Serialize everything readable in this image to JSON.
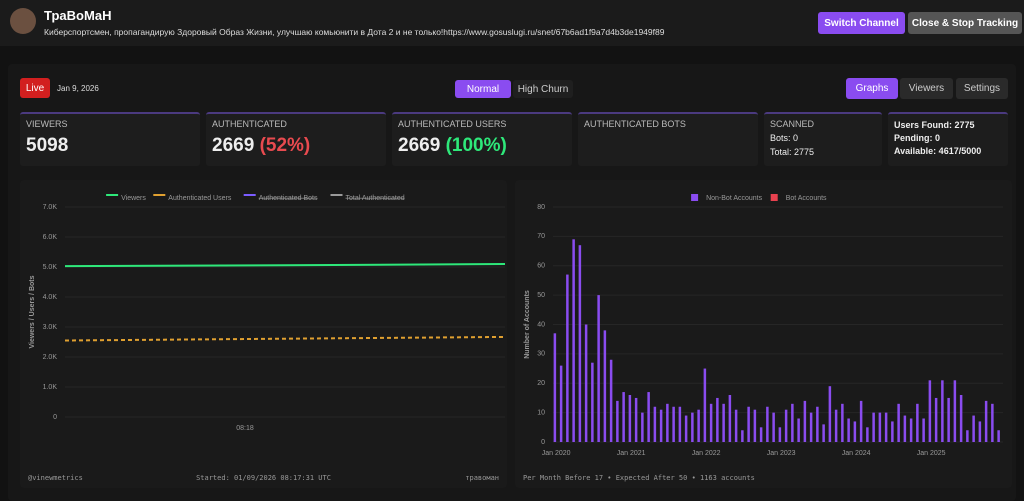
{
  "header": {
    "name": "ТраВоМаН",
    "description": "Киберспортсмен, пропагандирую Здоровый Образ Жизни, улучшаю комьюнити в Дота 2 и не только!https://www.gosuslugi.ru/snet/67b6ad1f9a7d4b3de1949f89",
    "buttons": [
      "Switch Channel",
      "Close & Stop Tracking"
    ]
  },
  "toolbar": {
    "live": "Live",
    "date": "Jan 9, 2026",
    "modes": [
      "Normal",
      "High Churn"
    ],
    "tabs": [
      "Graphs",
      "Viewers",
      "Settings"
    ]
  },
  "cards": [
    {
      "label": "VIEWERS",
      "value": "5098"
    },
    {
      "label": "AUTHENTICATED",
      "value": "2669",
      "percent": "(52%)"
    },
    {
      "label": "AUTHENTICATED USERS",
      "value": "2669",
      "percent": "(100%)"
    },
    {
      "label": "AUTHENTICATED BOTS"
    },
    {
      "label": "SCANNED",
      "lines": [
        "Bots: 0",
        "Total: 2775"
      ]
    },
    {
      "lines": [
        "Users Found: 2775",
        "Pending: 0",
        "Available: 4617/5000"
      ]
    }
  ],
  "chart_data": [
    {
      "type": "line",
      "y_label": "Viewers / Users / Bots",
      "categories": [
        null,
        "08:18",
        null
      ],
      "series": [
        {
          "name": "Viewers",
          "color": "#2ee87a",
          "values": [
            5030,
            5060,
            5098
          ]
        },
        {
          "name": "Authenticated Users",
          "color": "#e0a030",
          "dashed": true,
          "values": [
            2550,
            2610,
            2669
          ]
        },
        {
          "name": "Authenticated Bots",
          "color": "#7b5cff",
          "hidden": true
        },
        {
          "name": "Total Authenticated",
          "color": "#9a9a9a",
          "hidden": true
        }
      ],
      "ylim": [
        0,
        7000
      ],
      "yticks": [
        0,
        {
          "value": 1000,
          "label": "1.0K"
        },
        {
          "value": 2000,
          "label": "2.0K"
        },
        {
          "value": 3000,
          "label": "3.0K"
        },
        {
          "value": 4000,
          "label": "4.0K"
        },
        {
          "value": 5000,
          "label": "5.0K"
        },
        {
          "value": 6000,
          "label": "6.0K"
        },
        {
          "value": 7000,
          "label": "7.0K"
        }
      ],
      "footer": [
        "@vinewmetrics",
        "Started: 01/09/2026 08:17:31 UTC",
        "травоман"
      ]
    },
    {
      "type": "bar",
      "y_label": "Number of Accounts",
      "categories": [
        "Jan 2020",
        null,
        null,
        null,
        null,
        null,
        null,
        null,
        null,
        null,
        null,
        null,
        "Jan 2021",
        null,
        null,
        null,
        null,
        null,
        null,
        null,
        null,
        null,
        null,
        null,
        "Jan 2022",
        null,
        null,
        null,
        null,
        null,
        null,
        null,
        null,
        null,
        null,
        null,
        "Jan 2023",
        null,
        null,
        null,
        null,
        null,
        null,
        null,
        null,
        null,
        null,
        null,
        "Jan 2024",
        null,
        null,
        null,
        null,
        null,
        null,
        null,
        null,
        null,
        null,
        null,
        "Jan 2025",
        null,
        null,
        null,
        null,
        null,
        null,
        null,
        null,
        null,
        null,
        null
      ],
      "series": [
        {
          "name": "Non-Bot Accounts",
          "color": "#8a4cf0",
          "values": [
            37,
            26,
            57,
            69,
            67,
            40,
            27,
            50,
            38,
            28,
            14,
            17,
            16,
            15,
            10,
            17,
            12,
            11,
            13,
            12,
            12,
            9,
            10,
            11,
            25,
            13,
            15,
            13,
            16,
            11,
            4,
            12,
            11,
            5,
            12,
            10,
            5,
            11,
            13,
            8,
            14,
            10,
            12,
            6,
            19,
            11,
            13,
            8,
            7,
            14,
            5,
            10,
            10,
            10,
            7,
            13,
            9,
            8,
            13,
            8,
            21,
            15,
            21,
            15,
            21,
            16,
            4,
            9,
            7,
            14,
            13,
            4
          ]
        },
        {
          "name": "Bot Accounts",
          "color": "#e8414f",
          "values": [
            0,
            0,
            0,
            0,
            0,
            0,
            0,
            0,
            0,
            0,
            0,
            0,
            0,
            0,
            0,
            0,
            0,
            0,
            0,
            0,
            0,
            0,
            0,
            0,
            0,
            0,
            0,
            0,
            0,
            0,
            0,
            0,
            0,
            0,
            0,
            0,
            0,
            0,
            0,
            0,
            0,
            0,
            0,
            0,
            0,
            0,
            0,
            0,
            0,
            0,
            0,
            0,
            0,
            0,
            0,
            0,
            0,
            0,
            0,
            0,
            0,
            0,
            0,
            0,
            0,
            0,
            0,
            0,
            0,
            0,
            0,
            0
          ]
        }
      ],
      "ylim": [
        0,
        80
      ],
      "yticks": [
        0,
        10,
        20,
        30,
        40,
        50,
        60,
        70,
        80
      ],
      "footer": [
        "Per Month Before 17 • Expected After 50 • 1163 accounts"
      ]
    }
  ]
}
